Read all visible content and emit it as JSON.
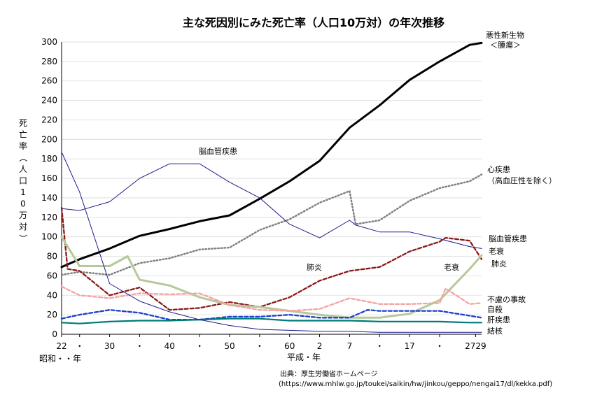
{
  "chart_data": {
    "type": "line",
    "title": "主な死因別にみた死亡率（人口10万対）の年次推移",
    "ylabel": "死亡率（人口10万対）",
    "xlabel_left": "昭和・・年",
    "xlabel_right": "平成・年",
    "ylim": [
      0,
      300
    ],
    "yticks": [
      0,
      20,
      40,
      60,
      80,
      100,
      120,
      140,
      160,
      180,
      200,
      220,
      240,
      260,
      280,
      300
    ],
    "x_range": [
      1947,
      2017
    ],
    "xticks": [
      {
        "label": "22",
        "year": 1947
      },
      {
        "label": "・",
        "year": 1950
      },
      {
        "label": "30",
        "year": 1955
      },
      {
        "label": "・",
        "year": 1960
      },
      {
        "label": "40",
        "year": 1965
      },
      {
        "label": "・",
        "year": 1970
      },
      {
        "label": "50",
        "year": 1975
      },
      {
        "label": "・",
        "year": 1980
      },
      {
        "label": "60",
        "year": 1985
      },
      {
        "label": "2",
        "year": 1990
      },
      {
        "label": "7",
        "year": 1995
      },
      {
        "label": "・",
        "year": 2000
      },
      {
        "label": "17",
        "year": 2005
      },
      {
        "label": "・",
        "year": 2010
      },
      {
        "label": "2729",
        "year": 2016
      }
    ],
    "grid": true,
    "series": [
      {
        "name": "悪性新生物＜腫瘍＞",
        "color": "#000000",
        "style": "thick",
        "x": [
          1947,
          1950,
          1955,
          1960,
          1965,
          1970,
          1975,
          1980,
          1985,
          1990,
          1995,
          2000,
          2005,
          2010,
          2015,
          2017
        ],
        "y": [
          69,
          77,
          88,
          101,
          108,
          116,
          122,
          139,
          157,
          178,
          212,
          235,
          261,
          280,
          297,
          299
        ]
      },
      {
        "name": "心疾患（高血圧性を除く）",
        "color": "#808080",
        "style": "dotted",
        "x": [
          1947,
          1950,
          1955,
          1960,
          1965,
          1970,
          1975,
          1980,
          1985,
          1990,
          1995,
          1996,
          2000,
          2005,
          2010,
          2015,
          2017
        ],
        "y": [
          61,
          64,
          61,
          73,
          78,
          87,
          89,
          107,
          118,
          135,
          147,
          113,
          117,
          137,
          150,
          157,
          164
        ]
      },
      {
        "name": "脳血管疾患",
        "color": "#1a1a8c",
        "style": "thin",
        "x": [
          1947,
          1950,
          1955,
          1960,
          1965,
          1970,
          1975,
          1980,
          1985,
          1990,
          1995,
          1996,
          2000,
          2005,
          2010,
          2015,
          2017
        ],
        "y": [
          129,
          127,
          136,
          160,
          175,
          175,
          156,
          140,
          113,
          99,
          117,
          112,
          105,
          105,
          98,
          90,
          88
        ]
      },
      {
        "name": "肺炎",
        "color": "#8b1a1a",
        "style": "dashed",
        "x": [
          1947,
          1948,
          1950,
          1955,
          1960,
          1965,
          1970,
          1975,
          1980,
          1985,
          1990,
          1995,
          2000,
          2005,
          2010,
          2011,
          2015,
          2017
        ],
        "y": [
          130,
          67,
          65,
          40,
          48,
          25,
          27,
          33,
          28,
          38,
          55,
          65,
          69,
          85,
          95,
          99,
          96,
          77
        ]
      },
      {
        "name": "老衰",
        "color": "#b5c99a",
        "style": "thick",
        "x": [
          1947,
          1950,
          1955,
          1958,
          1960,
          1965,
          1970,
          1975,
          1980,
          1985,
          1990,
          1995,
          2000,
          2005,
          2010,
          2015,
          2017
        ],
        "y": [
          100,
          70,
          70,
          80,
          56,
          50,
          38,
          30,
          28,
          24,
          20,
          17,
          17,
          21,
          35,
          67,
          81
        ]
      },
      {
        "name": "不慮の事故",
        "color": "#f4a3a3",
        "style": "dashed",
        "x": [
          1947,
          1950,
          1955,
          1960,
          1965,
          1970,
          1975,
          1980,
          1985,
          1990,
          1995,
          2000,
          2005,
          2010,
          2011,
          2015,
          2017
        ],
        "y": [
          49,
          40,
          37,
          42,
          41,
          42,
          30,
          25,
          24,
          26,
          37,
          31,
          31,
          32,
          47,
          31,
          32
        ]
      },
      {
        "name": "自殺",
        "color": "#1a3fcc",
        "style": "dashed",
        "x": [
          1947,
          1950,
          1955,
          1960,
          1965,
          1970,
          1975,
          1980,
          1985,
          1990,
          1995,
          1998,
          2000,
          2005,
          2010,
          2015,
          2017
        ],
        "y": [
          16,
          20,
          25,
          22,
          15,
          15,
          18,
          18,
          20,
          17,
          17,
          25,
          24,
          24,
          24,
          19,
          17
        ]
      },
      {
        "name": "肝疾患",
        "color": "#007a7a",
        "style": "medium",
        "x": [
          1947,
          1950,
          1955,
          1960,
          1965,
          1970,
          1975,
          1980,
          1985,
          1990,
          1995,
          2000,
          2005,
          2010,
          2015,
          2017
        ],
        "y": [
          12,
          11,
          13,
          14,
          14,
          15,
          16,
          16,
          14,
          14,
          14,
          13,
          13,
          13,
          12,
          12
        ]
      },
      {
        "name": "結核",
        "color": "#1a1a8c",
        "style": "thin",
        "x": [
          1947,
          1950,
          1955,
          1960,
          1965,
          1970,
          1975,
          1980,
          1985,
          1990,
          1995,
          2000,
          2005,
          2010,
          2015,
          2017
        ],
        "y": [
          187,
          146,
          52,
          34,
          23,
          15,
          9,
          5,
          4,
          3,
          3,
          2,
          2,
          2,
          2,
          2
        ]
      }
    ],
    "annotations": [
      {
        "text": "悪性新生物",
        "series": "悪性新生物＜腫瘍＞"
      },
      {
        "text": "＜腫瘍＞",
        "series": "悪性新生物＜腫瘍＞"
      },
      {
        "text": "心疾患",
        "series": "心疾患（高血圧性を除く）"
      },
      {
        "text": "（高血圧性を除く）",
        "series": "心疾患（高血圧性を除く）"
      },
      {
        "text": "脳血管疾患",
        "series": "脳血管疾患"
      },
      {
        "text": "脳血管疾患",
        "series": "脳血管疾患"
      },
      {
        "text": "老衰",
        "series": "老衰"
      },
      {
        "text": "老衰",
        "series": "老衰"
      },
      {
        "text": "肺炎",
        "series": "肺炎"
      },
      {
        "text": "肺炎",
        "series": "肺炎"
      },
      {
        "text": "不慮の事故",
        "series": "不慮の事故"
      },
      {
        "text": "自殺",
        "series": "自殺"
      },
      {
        "text": "肝疾患",
        "series": "肝疾患"
      },
      {
        "text": "結核",
        "series": "結核"
      }
    ],
    "source_line1": "出典：厚生労働省ホームページ",
    "source_line2": "(https://www.mhlw.go.jp/toukei/saikin/hw/jinkou/geppo/nengai17/dl/kekka.pdf)"
  }
}
